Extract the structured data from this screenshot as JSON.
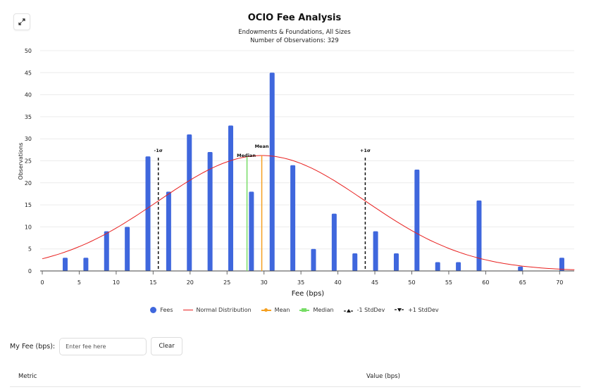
{
  "header": {
    "expand_icon": "expand-arrows-icon",
    "title": "OCIO Fee Analysis",
    "subtitle_line1": "Endowments & Foundations, All Sizes",
    "subtitle_line2": "Number of Observations: 329"
  },
  "chart_data": {
    "type": "bar",
    "title": "OCIO Fee Analysis",
    "subtitle": [
      "Endowments & Foundations, All Sizes",
      "Number of Observations: 329"
    ],
    "xlabel": "Fee (bps)",
    "ylabel": "Observations",
    "xlim": [
      0,
      72
    ],
    "ylim": [
      0,
      50
    ],
    "xticks": [
      0,
      5,
      10,
      15,
      20,
      25,
      30,
      35,
      40,
      45,
      50,
      55,
      60,
      65,
      70
    ],
    "yticks": [
      0,
      5,
      10,
      15,
      20,
      25,
      30,
      35,
      40,
      45,
      50
    ],
    "grid": "horizontal",
    "legend_position": "bottom",
    "series": [
      {
        "name": "Fees",
        "type": "bar",
        "color": "#3f67dd",
        "x": [
          3.1,
          5.9,
          8.7,
          11.5,
          14.3,
          17.1,
          19.9,
          22.7,
          25.5,
          28.3,
          31.1,
          33.9,
          36.7,
          39.5,
          42.3,
          45.1,
          47.9,
          50.7,
          53.5,
          56.3,
          59.1,
          64.7,
          70.3
        ],
        "values": [
          3,
          3,
          9,
          10,
          26,
          18,
          31,
          27,
          33,
          18,
          45,
          24,
          5,
          13,
          4,
          9,
          4,
          23,
          2,
          2,
          16,
          1,
          3
        ]
      },
      {
        "name": "Normal Distribution",
        "type": "line",
        "color": "#e8201f",
        "x": [
          0,
          5,
          10,
          15,
          20,
          25,
          29.7,
          35,
          40,
          45,
          50,
          55,
          60,
          65,
          70,
          72
        ],
        "values": [
          2.9,
          5.6,
          10.1,
          15.6,
          21.1,
          25.1,
          26.2,
          24.1,
          19.2,
          13.6,
          8.2,
          4.6,
          2.5,
          1.2,
          0.6,
          0.4
        ]
      }
    ],
    "reference_lines": [
      {
        "name": "Mean",
        "x": 29.7,
        "color": "#f5a020",
        "style": "solid",
        "label": "Mean"
      },
      {
        "name": "Median",
        "x": 27.7,
        "color": "#77dd66",
        "style": "solid",
        "label": "Median"
      },
      {
        "name": "-1 StdDev",
        "x": 15.7,
        "color": "#111111",
        "style": "dashed",
        "label": "-1σ"
      },
      {
        "name": "+1 StdDev",
        "x": 43.7,
        "color": "#111111",
        "style": "dashed",
        "label": "+1σ"
      }
    ]
  },
  "legend": {
    "items": [
      {
        "label": "Fees",
        "color": "#3f67dd"
      },
      {
        "label": "Normal Distribution",
        "color": "#e8201f"
      },
      {
        "label": "Mean",
        "color": "#f5a020"
      },
      {
        "label": "Median",
        "color": "#77dd66"
      },
      {
        "label": "-1 StdDev",
        "color": "#111111"
      },
      {
        "label": "+1 StdDev",
        "color": "#111111"
      }
    ]
  },
  "fee_input": {
    "label": "My Fee (bps):",
    "placeholder": "Enter fee here",
    "value": "",
    "clear_label": "Clear"
  },
  "table": {
    "headers": [
      "Metric",
      "Value (bps)"
    ]
  }
}
